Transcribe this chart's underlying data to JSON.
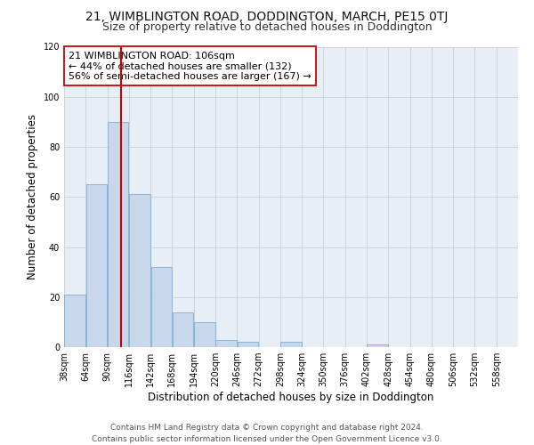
{
  "title": "21, WIMBLINGTON ROAD, DODDINGTON, MARCH, PE15 0TJ",
  "subtitle": "Size of property relative to detached houses in Doddington",
  "bar_values": [
    21,
    65,
    90,
    61,
    32,
    14,
    10,
    3,
    2,
    0,
    2,
    0,
    0,
    0,
    1,
    0,
    0
  ],
  "bin_edges": [
    38,
    64,
    90,
    116,
    142,
    168,
    194,
    220,
    246,
    272,
    298,
    324,
    350,
    376,
    402,
    428,
    454,
    480
  ],
  "bin_width": 26,
  "xtick_labels": [
    "38sqm",
    "64sqm",
    "90sqm",
    "116sqm",
    "142sqm",
    "168sqm",
    "194sqm",
    "220sqm",
    "246sqm",
    "272sqm",
    "298sqm",
    "324sqm",
    "350sqm",
    "376sqm",
    "402sqm",
    "428sqm",
    "454sqm",
    "480sqm",
    "506sqm",
    "532sqm",
    "558sqm"
  ],
  "ylim": [
    0,
    120
  ],
  "yticks": [
    0,
    20,
    40,
    60,
    80,
    100,
    120
  ],
  "ylabel": "Number of detached properties",
  "xlabel": "Distribution of detached houses by size in Doddington",
  "bar_color": "#c8d8ea",
  "bar_edge_color": "#7bafd4",
  "grid_color": "#c8d0dc",
  "background_color": "#e8eef6",
  "fig_background": "#ffffff",
  "vline_x": 106,
  "vline_color": "#cc0000",
  "annotation_line1": "21 WIMBLINGTON ROAD: 106sqm",
  "annotation_line2": "← 44% of detached houses are smaller (132)",
  "annotation_line3": "56% of semi-detached houses are larger (167) →",
  "annotation_box_color": "#ffffff",
  "annotation_box_edge": "#cc0000",
  "footer_text": "Contains HM Land Registry data © Crown copyright and database right 2024.\nContains public sector information licensed under the Open Government Licence v3.0.",
  "title_fontsize": 10,
  "subtitle_fontsize": 9,
  "xlabel_fontsize": 8.5,
  "ylabel_fontsize": 8.5,
  "tick_fontsize": 7,
  "annotation_fontsize": 8,
  "footer_fontsize": 6.5
}
